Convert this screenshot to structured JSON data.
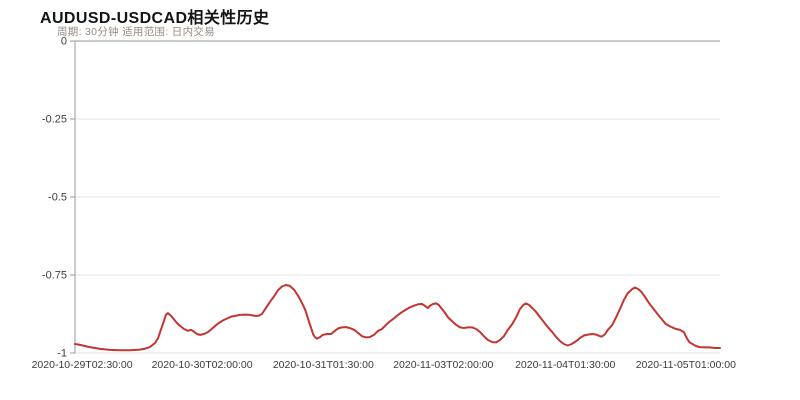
{
  "header": {
    "title": "AUDUSD-USDCAD相关性历史",
    "subtitle": "周期: 30分钟 适用范围: 日内交易"
  },
  "colors": {
    "line": "#c23531",
    "grid": "#e6e6e6",
    "axis": "#999999",
    "axis_bottom": "#e0e0e0",
    "tick_label": "#3c3c3c",
    "title": "#141414",
    "subtitle": "#998a7e",
    "background": "#ffffff"
  },
  "chart_data": {
    "type": "line",
    "title": "AUDUSD-USDCAD相关性历史",
    "subtitle": "周期: 30分钟 适用范围: 日内交易",
    "xlabel": "",
    "ylabel": "",
    "ylim": [
      -1,
      0
    ],
    "grid": "horizontal-only",
    "legend": "none",
    "series_name": "AUDUSD-USDCAD correlation",
    "y_ticks": [
      {
        "label": "0",
        "value": 0
      },
      {
        "label": "-0.25",
        "value": -0.25
      },
      {
        "label": "-0.5",
        "value": -0.5
      },
      {
        "label": "-0.75",
        "value": -0.75
      },
      {
        "label": "-1",
        "value": -1
      }
    ],
    "x_ticks": [
      {
        "label": "2020-10-29T02:30:00",
        "pos": 0.011
      },
      {
        "label": "2020-10-30T02:00:00",
        "pos": 0.197
      },
      {
        "label": "2020-10-31T01:30:00",
        "pos": 0.385
      },
      {
        "label": "2020-11-03T02:00:00",
        "pos": 0.571
      },
      {
        "label": "2020-11-04T01:30:00",
        "pos": 0.76
      },
      {
        "label": "2020-11-05T01:00:00",
        "pos": 0.947
      }
    ],
    "points": [
      [
        0.0,
        -0.971
      ],
      [
        0.008,
        -0.974
      ],
      [
        0.016,
        -0.978
      ],
      [
        0.023,
        -0.981
      ],
      [
        0.031,
        -0.984
      ],
      [
        0.039,
        -0.987
      ],
      [
        0.054,
        -0.99
      ],
      [
        0.07,
        -0.991
      ],
      [
        0.085,
        -0.991
      ],
      [
        0.101,
        -0.989
      ],
      [
        0.109,
        -0.986
      ],
      [
        0.116,
        -0.981
      ],
      [
        0.124,
        -0.968
      ],
      [
        0.129,
        -0.952
      ],
      [
        0.133,
        -0.926
      ],
      [
        0.138,
        -0.897
      ],
      [
        0.141,
        -0.878
      ],
      [
        0.144,
        -0.872
      ],
      [
        0.149,
        -0.881
      ],
      [
        0.153,
        -0.891
      ],
      [
        0.158,
        -0.904
      ],
      [
        0.163,
        -0.913
      ],
      [
        0.169,
        -0.923
      ],
      [
        0.175,
        -0.929
      ],
      [
        0.18,
        -0.926
      ],
      [
        0.184,
        -0.931
      ],
      [
        0.189,
        -0.939
      ],
      [
        0.194,
        -0.942
      ],
      [
        0.2,
        -0.939
      ],
      [
        0.206,
        -0.933
      ],
      [
        0.212,
        -0.923
      ],
      [
        0.219,
        -0.91
      ],
      [
        0.225,
        -0.901
      ],
      [
        0.231,
        -0.894
      ],
      [
        0.237,
        -0.888
      ],
      [
        0.243,
        -0.883
      ],
      [
        0.25,
        -0.88
      ],
      [
        0.256,
        -0.878
      ],
      [
        0.264,
        -0.877
      ],
      [
        0.271,
        -0.878
      ],
      [
        0.279,
        -0.881
      ],
      [
        0.284,
        -0.881
      ],
      [
        0.29,
        -0.875
      ],
      [
        0.296,
        -0.856
      ],
      [
        0.302,
        -0.837
      ],
      [
        0.309,
        -0.817
      ],
      [
        0.315,
        -0.798
      ],
      [
        0.321,
        -0.787
      ],
      [
        0.327,
        -0.782
      ],
      [
        0.333,
        -0.785
      ],
      [
        0.34,
        -0.798
      ],
      [
        0.346,
        -0.817
      ],
      [
        0.352,
        -0.84
      ],
      [
        0.357,
        -0.862
      ],
      [
        0.361,
        -0.888
      ],
      [
        0.366,
        -0.92
      ],
      [
        0.369,
        -0.939
      ],
      [
        0.372,
        -0.949
      ],
      [
        0.375,
        -0.954
      ],
      [
        0.38,
        -0.949
      ],
      [
        0.384,
        -0.942
      ],
      [
        0.391,
        -0.939
      ],
      [
        0.397,
        -0.939
      ],
      [
        0.403,
        -0.929
      ],
      [
        0.408,
        -0.921
      ],
      [
        0.414,
        -0.918
      ],
      [
        0.42,
        -0.917
      ],
      [
        0.426,
        -0.92
      ],
      [
        0.433,
        -0.926
      ],
      [
        0.439,
        -0.936
      ],
      [
        0.445,
        -0.946
      ],
      [
        0.451,
        -0.95
      ],
      [
        0.457,
        -0.949
      ],
      [
        0.464,
        -0.941
      ],
      [
        0.47,
        -0.929
      ],
      [
        0.476,
        -0.923
      ],
      [
        0.482,
        -0.91
      ],
      [
        0.488,
        -0.899
      ],
      [
        0.495,
        -0.888
      ],
      [
        0.501,
        -0.878
      ],
      [
        0.507,
        -0.869
      ],
      [
        0.513,
        -0.861
      ],
      [
        0.519,
        -0.854
      ],
      [
        0.526,
        -0.848
      ],
      [
        0.532,
        -0.844
      ],
      [
        0.538,
        -0.843
      ],
      [
        0.544,
        -0.851
      ],
      [
        0.547,
        -0.856
      ],
      [
        0.55,
        -0.849
      ],
      [
        0.555,
        -0.843
      ],
      [
        0.56,
        -0.841
      ],
      [
        0.564,
        -0.846
      ],
      [
        0.569,
        -0.859
      ],
      [
        0.574,
        -0.872
      ],
      [
        0.578,
        -0.885
      ],
      [
        0.584,
        -0.897
      ],
      [
        0.591,
        -0.91
      ],
      [
        0.597,
        -0.918
      ],
      [
        0.603,
        -0.92
      ],
      [
        0.609,
        -0.918
      ],
      [
        0.616,
        -0.918
      ],
      [
        0.622,
        -0.923
      ],
      [
        0.628,
        -0.933
      ],
      [
        0.634,
        -0.946
      ],
      [
        0.64,
        -0.958
      ],
      [
        0.647,
        -0.965
      ],
      [
        0.653,
        -0.966
      ],
      [
        0.659,
        -0.958
      ],
      [
        0.665,
        -0.946
      ],
      [
        0.671,
        -0.926
      ],
      [
        0.678,
        -0.907
      ],
      [
        0.684,
        -0.885
      ],
      [
        0.69,
        -0.859
      ],
      [
        0.695,
        -0.846
      ],
      [
        0.699,
        -0.841
      ],
      [
        0.704,
        -0.846
      ],
      [
        0.709,
        -0.856
      ],
      [
        0.715,
        -0.869
      ],
      [
        0.721,
        -0.885
      ],
      [
        0.727,
        -0.901
      ],
      [
        0.733,
        -0.917
      ],
      [
        0.74,
        -0.933
      ],
      [
        0.746,
        -0.949
      ],
      [
        0.752,
        -0.962
      ],
      [
        0.758,
        -0.971
      ],
      [
        0.764,
        -0.976
      ],
      [
        0.77,
        -0.971
      ],
      [
        0.777,
        -0.962
      ],
      [
        0.783,
        -0.952
      ],
      [
        0.789,
        -0.944
      ],
      [
        0.795,
        -0.941
      ],
      [
        0.802,
        -0.939
      ],
      [
        0.808,
        -0.941
      ],
      [
        0.814,
        -0.946
      ],
      [
        0.817,
        -0.947
      ],
      [
        0.822,
        -0.939
      ],
      [
        0.826,
        -0.926
      ],
      [
        0.833,
        -0.91
      ],
      [
        0.839,
        -0.885
      ],
      [
        0.845,
        -0.859
      ],
      [
        0.851,
        -0.83
      ],
      [
        0.857,
        -0.808
      ],
      [
        0.864,
        -0.795
      ],
      [
        0.868,
        -0.79
      ],
      [
        0.873,
        -0.795
      ],
      [
        0.878,
        -0.804
      ],
      [
        0.884,
        -0.821
      ],
      [
        0.89,
        -0.84
      ],
      [
        0.896,
        -0.856
      ],
      [
        0.902,
        -0.872
      ],
      [
        0.907,
        -0.885
      ],
      [
        0.912,
        -0.897
      ],
      [
        0.916,
        -0.907
      ],
      [
        0.921,
        -0.913
      ],
      [
        0.926,
        -0.918
      ],
      [
        0.932,
        -0.923
      ],
      [
        0.938,
        -0.926
      ],
      [
        0.944,
        -0.933
      ],
      [
        0.947,
        -0.946
      ],
      [
        0.95,
        -0.958
      ],
      [
        0.953,
        -0.966
      ],
      [
        0.958,
        -0.972
      ],
      [
        0.963,
        -0.978
      ],
      [
        0.969,
        -0.981
      ],
      [
        0.977,
        -0.982
      ],
      [
        0.984,
        -0.982
      ],
      [
        0.992,
        -0.984
      ],
      [
        1.0,
        -0.984
      ]
    ]
  }
}
